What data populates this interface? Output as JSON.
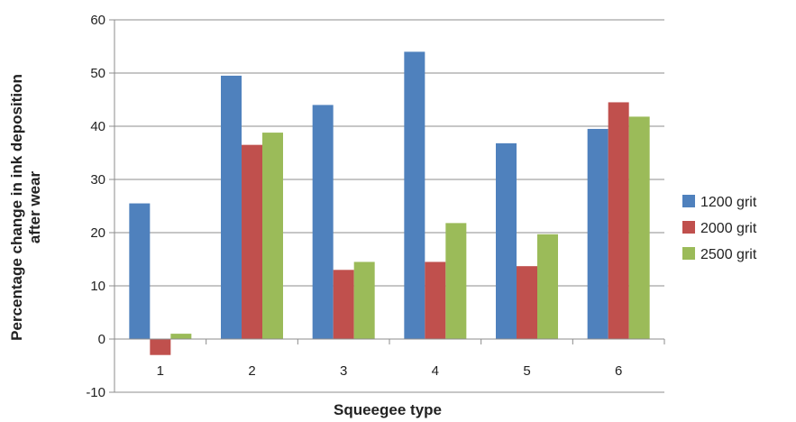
{
  "chart_data": {
    "type": "bar",
    "title": "",
    "xlabel": "Squeegee type",
    "ylabel_lines": [
      "Percentage change in ink deposition",
      "after wear"
    ],
    "categories": [
      "1",
      "2",
      "3",
      "4",
      "5",
      "6"
    ],
    "series": [
      {
        "name": "1200 grit",
        "color": "#4f81bd",
        "values": [
          25.5,
          49.5,
          44,
          54,
          36.8,
          39.5
        ]
      },
      {
        "name": "2000 grit",
        "color": "#c0504d",
        "values": [
          -3,
          36.5,
          13,
          14.5,
          13.7,
          44.5
        ]
      },
      {
        "name": "2500 grit",
        "color": "#9bbb59",
        "values": [
          1,
          38.8,
          14.5,
          21.8,
          19.7,
          41.8
        ]
      }
    ],
    "ylim": [
      -10,
      60
    ],
    "yticks": [
      -10,
      0,
      10,
      20,
      30,
      40,
      50,
      60
    ],
    "grid": true,
    "legend": "right"
  }
}
